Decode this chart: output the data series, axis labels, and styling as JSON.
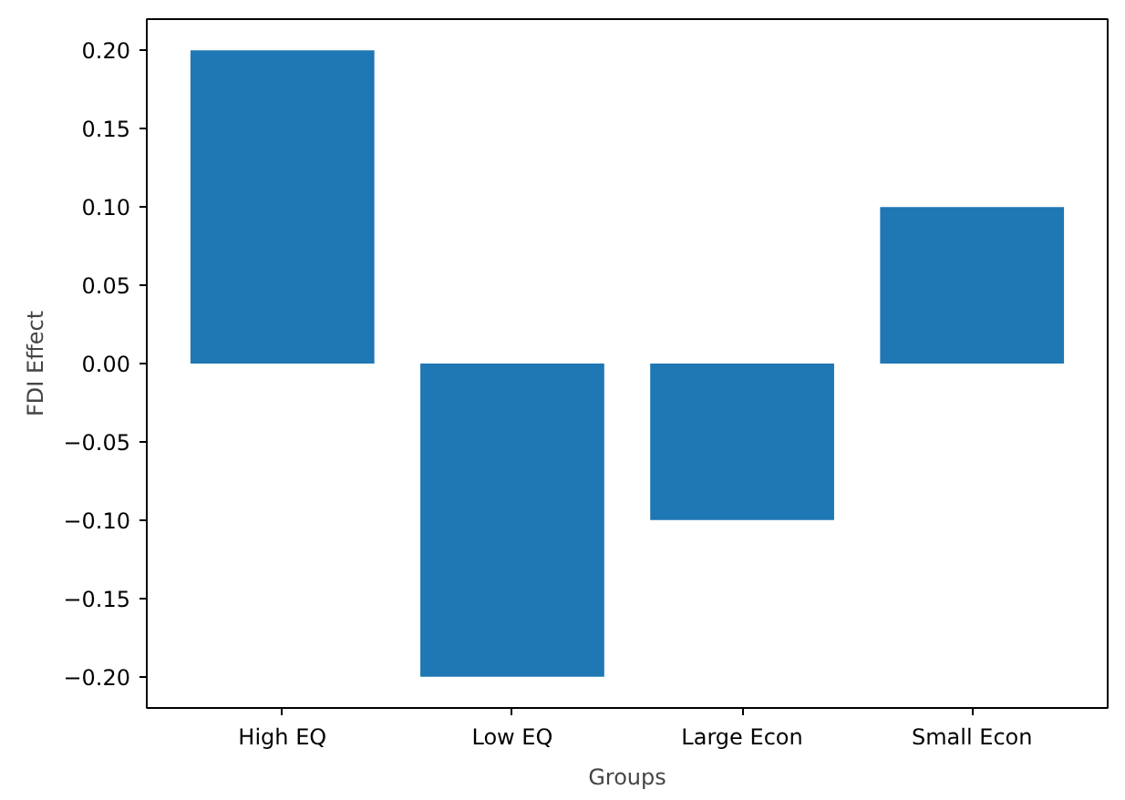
{
  "chart_data": {
    "type": "bar",
    "xlabel": "Groups",
    "ylabel": "FDI Effect",
    "categories": [
      "High EQ",
      "Low EQ",
      "Large Econ",
      "Small Econ"
    ],
    "values": [
      0.2,
      -0.2,
      -0.1,
      0.1
    ],
    "color": "#1f77b4",
    "ylim": [
      -0.22,
      0.22
    ],
    "yticks": [
      {
        "value": -0.2,
        "label": "−0.20"
      },
      {
        "value": -0.15,
        "label": "−0.15"
      },
      {
        "value": -0.1,
        "label": "−0.10"
      },
      {
        "value": -0.05,
        "label": "−0.05"
      },
      {
        "value": 0.0,
        "label": "0.00"
      },
      {
        "value": 0.05,
        "label": "0.05"
      },
      {
        "value": 0.1,
        "label": "0.10"
      },
      {
        "value": 0.15,
        "label": "0.15"
      },
      {
        "value": 0.2,
        "label": "0.20"
      }
    ],
    "grid": false
  }
}
